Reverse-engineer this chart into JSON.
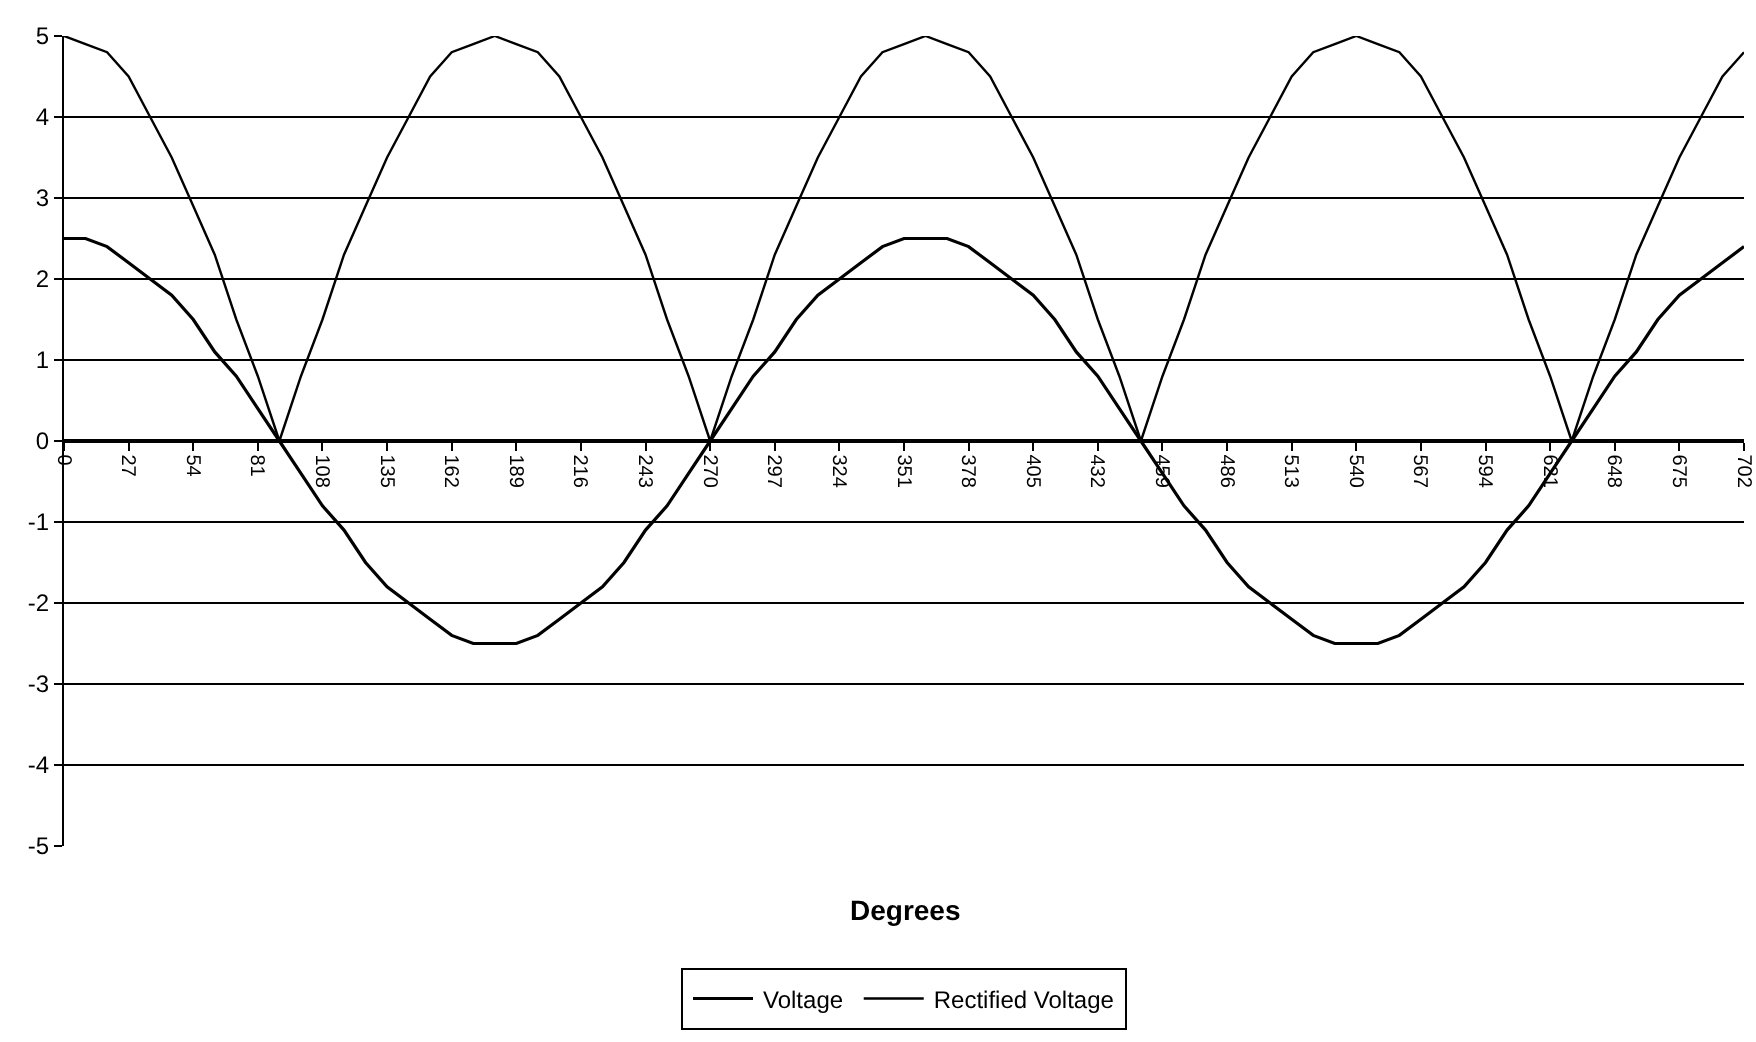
{
  "chart_data": {
    "type": "line",
    "xlabel": "Degrees",
    "x": [
      0,
      9,
      18,
      27,
      36,
      45,
      54,
      63,
      72,
      81,
      90,
      99,
      108,
      117,
      126,
      135,
      144,
      153,
      162,
      171,
      180,
      189,
      198,
      207,
      216,
      225,
      234,
      243,
      252,
      261,
      270,
      279,
      288,
      297,
      306,
      315,
      324,
      333,
      342,
      351,
      360,
      369,
      378,
      387,
      396,
      405,
      414,
      423,
      432,
      441,
      450,
      459,
      468,
      477,
      486,
      495,
      504,
      513,
      522,
      531,
      540,
      549,
      558,
      567,
      576,
      585,
      594,
      603,
      612,
      621,
      630,
      639,
      648,
      657,
      666,
      675,
      684,
      693,
      702
    ],
    "series": [
      {
        "name": "Voltage",
        "color": "#000000",
        "values": [
          2.5,
          2.5,
          2.4,
          2.2,
          2.0,
          1.8,
          1.5,
          1.1,
          0.8,
          0.4,
          0,
          -0.4,
          -0.8,
          -1.1,
          -1.5,
          -1.8,
          -2.0,
          -2.2,
          -2.4,
          -2.5,
          -2.5,
          -2.5,
          -2.4,
          -2.2,
          -2.0,
          -1.8,
          -1.5,
          -1.1,
          -0.8,
          -0.4,
          0,
          0.4,
          0.8,
          1.1,
          1.5,
          1.8,
          2.0,
          2.2,
          2.4,
          2.5,
          2.5,
          2.5,
          2.4,
          2.2,
          2.0,
          1.8,
          1.5,
          1.1,
          0.8,
          0.4,
          0,
          -0.4,
          -0.8,
          -1.1,
          -1.5,
          -1.8,
          -2.0,
          -2.2,
          -2.4,
          -2.5,
          -2.5,
          -2.5,
          -2.4,
          -2.2,
          -2.0,
          -1.8,
          -1.5,
          -1.1,
          -0.8,
          -0.4,
          0,
          0.4,
          0.8,
          1.1,
          1.5,
          1.8,
          2.0,
          2.2,
          2.4
        ]
      },
      {
        "name": "Rectified Voltage",
        "color": "#000000",
        "values": [
          5.0,
          4.9,
          4.8,
          4.5,
          4.0,
          3.5,
          2.9,
          2.3,
          1.5,
          0.8,
          0,
          0.8,
          1.5,
          2.3,
          2.9,
          3.5,
          4.0,
          4.5,
          4.8,
          4.9,
          5.0,
          4.9,
          4.8,
          4.5,
          4.0,
          3.5,
          2.9,
          2.3,
          1.5,
          0.8,
          0,
          0.8,
          1.5,
          2.3,
          2.9,
          3.5,
          4.0,
          4.5,
          4.8,
          4.9,
          5.0,
          4.9,
          4.8,
          4.5,
          4.0,
          3.5,
          2.9,
          2.3,
          1.5,
          0.8,
          0,
          0.8,
          1.5,
          2.3,
          2.9,
          3.5,
          4.0,
          4.5,
          4.8,
          4.9,
          5.0,
          4.9,
          4.8,
          4.5,
          4.0,
          3.5,
          2.9,
          2.3,
          1.5,
          0.8,
          0,
          0.8,
          1.5,
          2.3,
          2.9,
          3.5,
          4.0,
          4.5,
          4.8
        ]
      }
    ],
    "xlim": [
      0,
      702
    ],
    "xticks": [
      0,
      27,
      54,
      81,
      108,
      135,
      162,
      189,
      216,
      243,
      270,
      297,
      324,
      351,
      378,
      405,
      432,
      459,
      486,
      513,
      540,
      567,
      594,
      621,
      648,
      675,
      702
    ],
    "ylim": [
      -5,
      5
    ],
    "yticks": [
      -5,
      -4,
      -3,
      -2,
      -1,
      0,
      1,
      2,
      3,
      4,
      5
    ],
    "grid": "y",
    "legend": "bottom",
    "marker": "none",
    "line_style": "solid"
  }
}
